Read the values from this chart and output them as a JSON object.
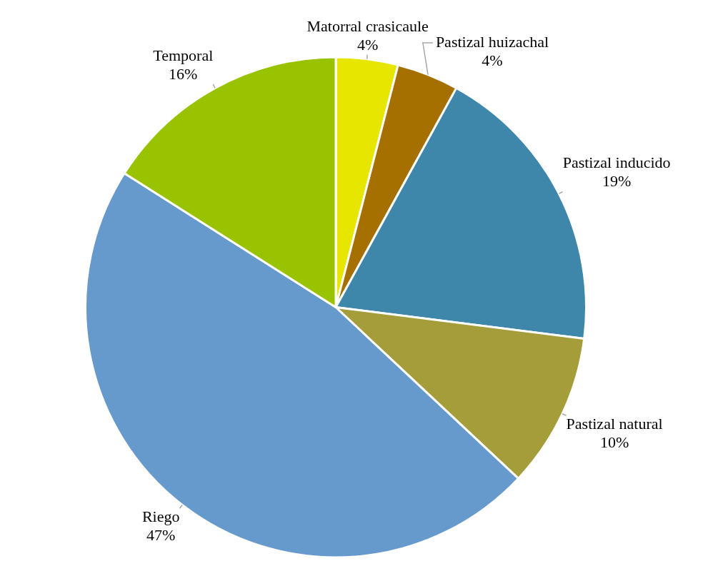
{
  "chart_data": {
    "type": "pie",
    "categories": [
      "Matorral crasicaule",
      "Pastizal huizachal",
      "Pastizal inducido",
      "Pastizal natural",
      "Riego",
      "Temporal"
    ],
    "values": [
      4,
      4,
      19,
      10,
      47,
      16
    ],
    "value_labels": [
      "4%",
      "4%",
      "19%",
      "10%",
      "47%",
      "16%"
    ],
    "colors": [
      "#e6e600",
      "#a67000",
      "#3e87ab",
      "#a59c3a",
      "#6699cc",
      "#99c200"
    ],
    "legend": false
  }
}
